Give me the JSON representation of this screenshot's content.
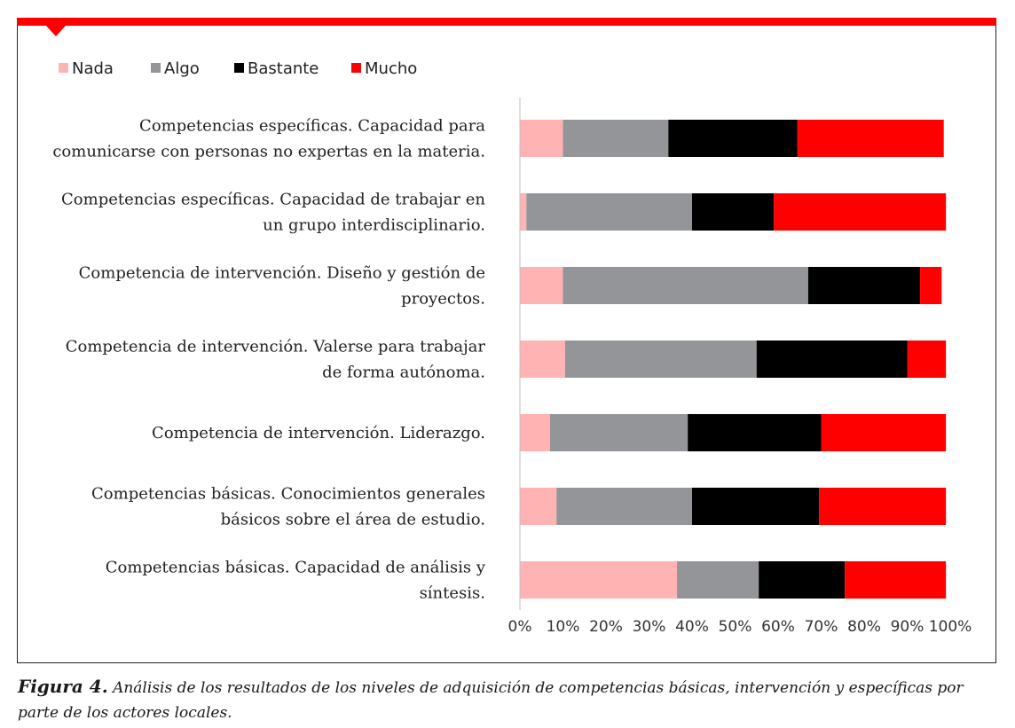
{
  "colors": {
    "accent": "#ff0000",
    "nada": "#ffb3b3",
    "algo": "#939598",
    "bastante": "#000000",
    "mucho": "#ff0000"
  },
  "caption": {
    "label": "Figura 4.",
    "text": " Análisis de los resultados de los niveles de adquisición de competencias básicas, intervención y específicas por parte de los actores locales."
  },
  "chart_data": {
    "type": "bar",
    "orientation": "horizontal",
    "stacked": true,
    "legend_position": "top-left",
    "grid": false,
    "xlim": [
      0,
      100
    ],
    "x_ticks": [
      "0%",
      "10%",
      "20%",
      "30%",
      "40%",
      "50%",
      "60%",
      "70%",
      "80%",
      "90%",
      "100%"
    ],
    "categories": [
      [
        "Competencias específicas. Capacidad para",
        "comunicarse con personas no expertas en la materia."
      ],
      [
        "Competencias específicas. Capacidad de trabajar en",
        "un grupo interdisciplinario."
      ],
      [
        "Competencia de intervención. Diseño y gestión de",
        "proyectos."
      ],
      [
        "Competencia de intervención. Valerse para trabajar",
        "de forma autónoma."
      ],
      [
        "Competencia de intervención. Liderazgo."
      ],
      [
        "Competencias básicas. Conocimientos generales",
        "básicos sobre el área de estudio."
      ],
      [
        "Competencias básicas. Capacidad de análisis y",
        "síntesis."
      ]
    ],
    "series": [
      {
        "name": "Nada",
        "color": "#ffb3b3",
        "values": [
          10,
          1.5,
          10,
          10.5,
          7,
          8.5,
          36.5
        ]
      },
      {
        "name": "Algo",
        "color": "#939598",
        "values": [
          24.5,
          38.5,
          57,
          44.5,
          32,
          31.5,
          19
        ]
      },
      {
        "name": "Bastante",
        "color": "#000000",
        "values": [
          30,
          19,
          26,
          35,
          31,
          29.5,
          20
        ]
      },
      {
        "name": "Mucho",
        "color": "#ff0000",
        "values": [
          34,
          40,
          5,
          9,
          29,
          29.5,
          23.5
        ]
      }
    ]
  }
}
